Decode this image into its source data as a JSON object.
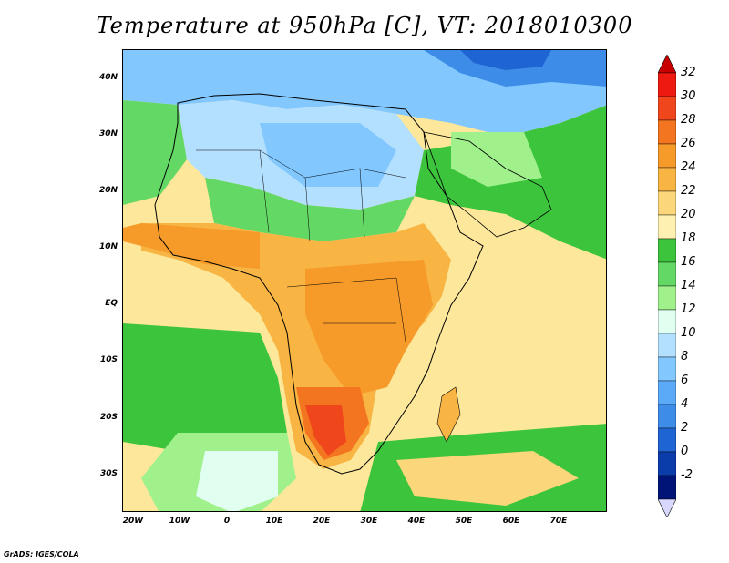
{
  "title": "Temperature at 950hPa [C], VT: 2018010300",
  "credit": "GrADS: IGES/COLA",
  "latitude_labels": [
    "40N",
    "30N",
    "20N",
    "10N",
    "EQ",
    "10S",
    "20S",
    "30S"
  ],
  "longitude_labels": [
    "20W",
    "10W",
    "0",
    "10E",
    "20E",
    "30E",
    "40E",
    "50E",
    "60E",
    "70E"
  ],
  "colorbar": {
    "labels": [
      "32",
      "30",
      "28",
      "26",
      "24",
      "22",
      "20",
      "18",
      "16",
      "14",
      "12",
      "10",
      "8",
      "6",
      "4",
      "2",
      "0",
      "-2"
    ],
    "colors": [
      "#ee1a10",
      "#f0461c",
      "#f47520",
      "#f69a2a",
      "#f8b544",
      "#fcd67a",
      "#fdf0b0",
      "#3cc43c",
      "#64d864",
      "#a0f08c",
      "#e0fff0",
      "#b4e0ff",
      "#82c8ff",
      "#5aaaf8",
      "#3c8ce8",
      "#1e64d2",
      "#0a3caa",
      "#001478"
    ],
    "over_color": "#c80000",
    "under_color": "#d8d8ff"
  },
  "colors": {
    "ocean_mid": "#fce79a",
    "ocean_green": "#44c844",
    "map_border": "#000000"
  }
}
